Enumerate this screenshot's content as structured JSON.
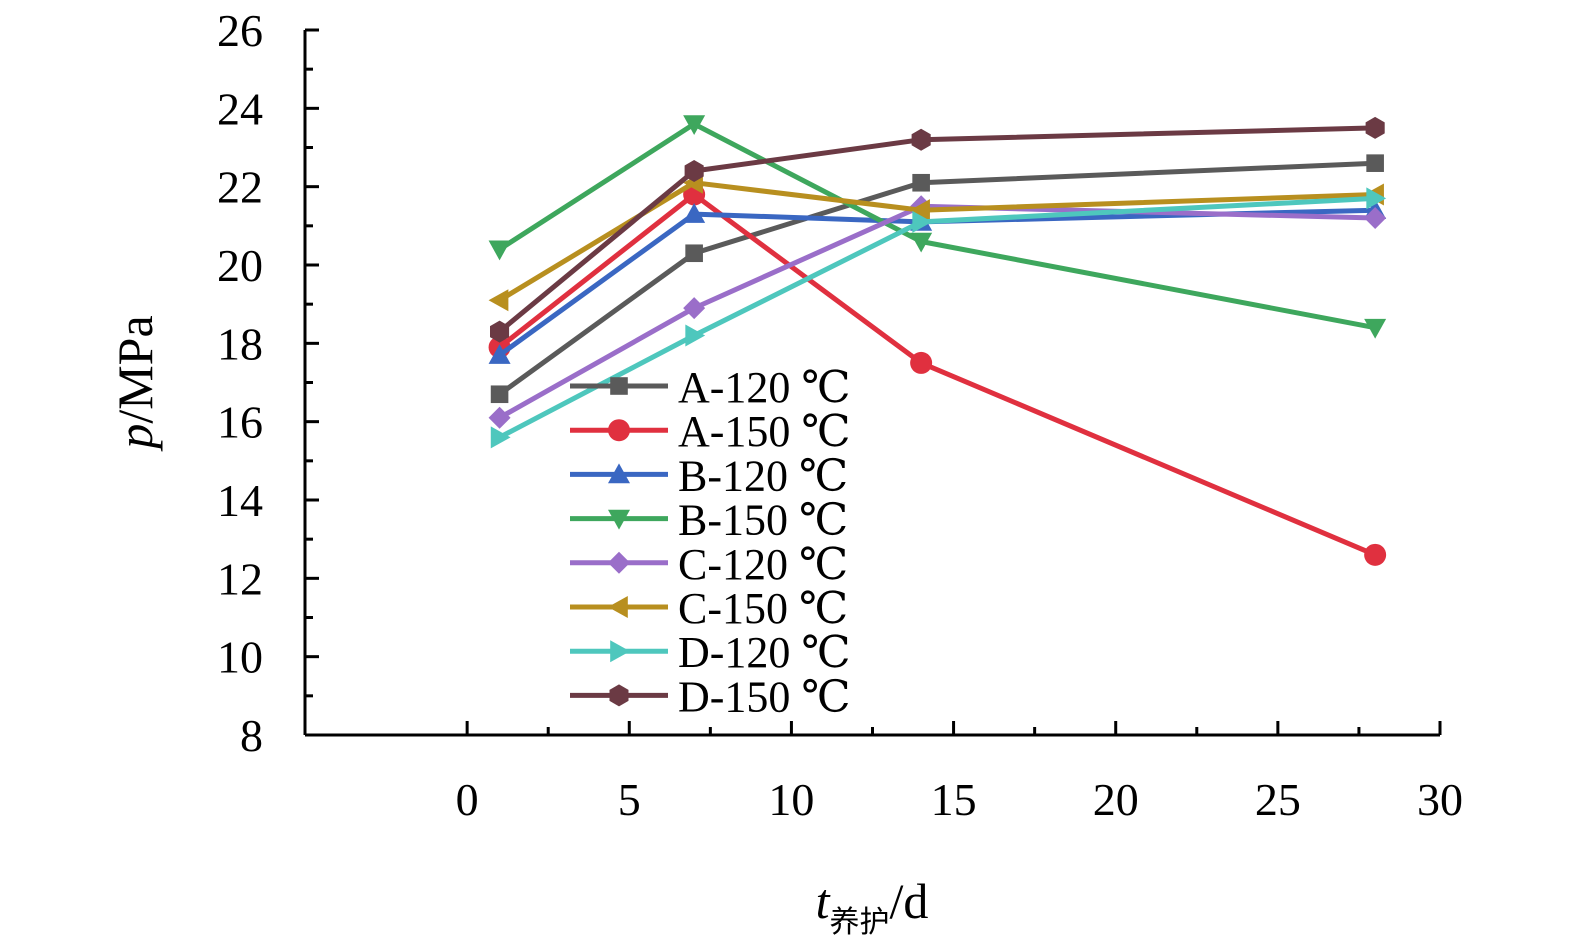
{
  "chart_data": {
    "type": "line",
    "title": "",
    "xlabel": {
      "var": "t",
      "sub": "养护",
      "unit": "/d"
    },
    "ylabel": {
      "var": "p",
      "unit": "/MPa"
    },
    "xlim": [
      -5,
      30
    ],
    "ylim": [
      8,
      26
    ],
    "xticks": [
      0,
      5,
      10,
      15,
      20,
      25,
      30
    ],
    "yticks": [
      8,
      10,
      12,
      14,
      16,
      18,
      20,
      22,
      24,
      26
    ],
    "grid": false,
    "legend_position": "center-left",
    "x": [
      1,
      7,
      14,
      28
    ],
    "series": [
      {
        "name": "A-120 ℃",
        "color": "#5a5a5a",
        "marker": "square",
        "values": [
          16.7,
          20.3,
          22.1,
          22.6
        ]
      },
      {
        "name": "A-150 ℃",
        "color": "#e0303f",
        "marker": "circle",
        "values": [
          17.9,
          21.8,
          17.5,
          12.6
        ]
      },
      {
        "name": "B-120 ℃",
        "color": "#3a67c2",
        "marker": "triangle-up",
        "values": [
          17.7,
          21.3,
          21.1,
          21.4
        ]
      },
      {
        "name": "B-150 ℃",
        "color": "#3ea75d",
        "marker": "triangle-down",
        "values": [
          20.4,
          23.6,
          20.6,
          18.4
        ]
      },
      {
        "name": "C-120 ℃",
        "color": "#9a6ec9",
        "marker": "diamond",
        "values": [
          16.1,
          18.9,
          21.5,
          21.2
        ]
      },
      {
        "name": "C-150 ℃",
        "color": "#b88f1f",
        "marker": "triangle-left",
        "values": [
          19.1,
          22.1,
          21.4,
          21.8
        ]
      },
      {
        "name": "D-120 ℃",
        "color": "#4ec7bd",
        "marker": "triangle-right",
        "values": [
          15.6,
          18.2,
          21.1,
          21.7
        ]
      },
      {
        "name": "D-150 ℃",
        "color": "#6b3a44",
        "marker": "hexagon",
        "values": [
          18.3,
          22.4,
          23.2,
          23.5
        ]
      }
    ]
  }
}
